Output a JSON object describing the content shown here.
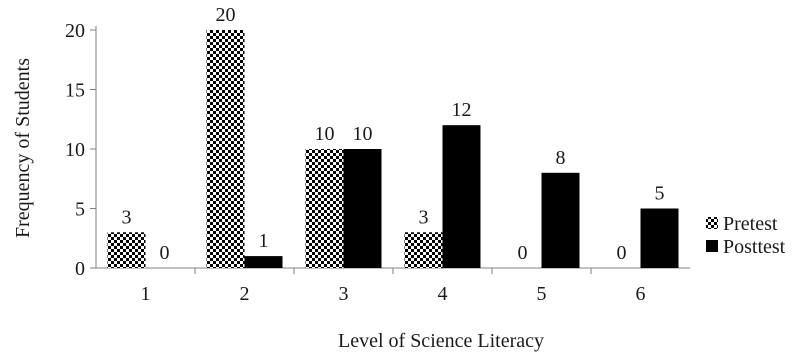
{
  "chart_data": {
    "type": "bar",
    "categories": [
      "1",
      "2",
      "3",
      "4",
      "5",
      "6"
    ],
    "series": [
      {
        "name": "Pretest",
        "values": [
          3,
          20,
          10,
          3,
          0,
          0
        ],
        "pattern": "checkerboard"
      },
      {
        "name": "Posttest",
        "values": [
          0,
          1,
          10,
          12,
          8,
          5
        ],
        "color": "#000000"
      }
    ],
    "title": "",
    "xlabel": "Level of Science Literacy",
    "ylabel": "Frequency of Students",
    "ylim": [
      0,
      20
    ],
    "yticks": [
      0,
      5,
      10,
      15,
      20
    ],
    "data_labels": true,
    "grid": false,
    "legend_position": "right"
  }
}
